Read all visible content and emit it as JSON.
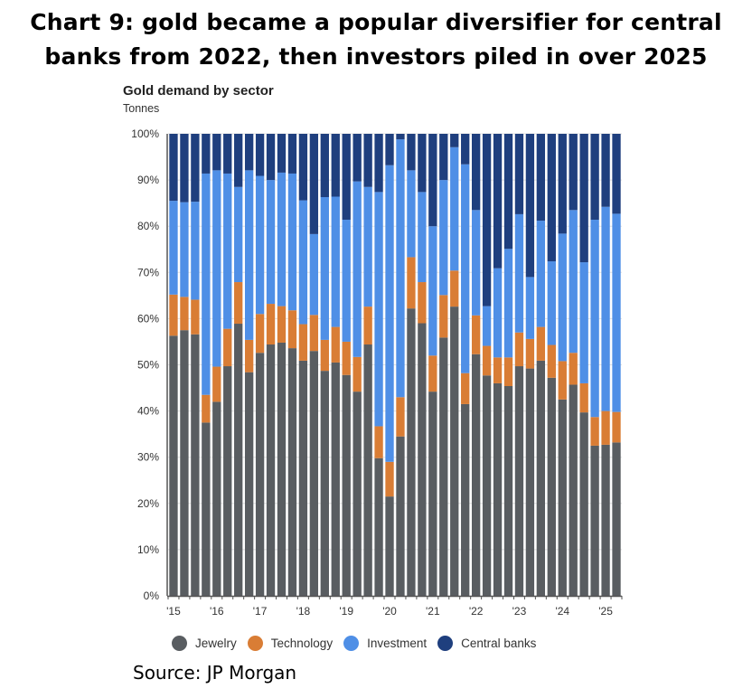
{
  "headline": {
    "line1": "Chart 9: gold became a popular diversifier for central",
    "line2": "banks from 2022, then investors piled in over 2025"
  },
  "source": "Source: JP Morgan",
  "chart_data": {
    "type": "bar",
    "stacked": true,
    "title": "Gold demand by sector",
    "ylabel": "Tonnes",
    "xlabel": "",
    "ylim": [
      0,
      100
    ],
    "y_ticks": [
      "0%",
      "10%",
      "20%",
      "30%",
      "40%",
      "50%",
      "60%",
      "70%",
      "80%",
      "90%",
      "100%"
    ],
    "x_tick_labels": [
      "'15",
      "'16",
      "'17",
      "'18",
      "'19",
      "'20",
      "'21",
      "'22",
      "'23",
      "'24",
      "'25"
    ],
    "legend_position": "bottom",
    "categories": [
      "Q1'15",
      "Q2'15",
      "Q3'15",
      "Q4'15",
      "Q1'16",
      "Q2'16",
      "Q3'16",
      "Q4'16",
      "Q1'17",
      "Q2'17",
      "Q3'17",
      "Q4'17",
      "Q1'18",
      "Q2'18",
      "Q3'18",
      "Q4'18",
      "Q1'19",
      "Q2'19",
      "Q3'19",
      "Q4'19",
      "Q1'20",
      "Q2'20",
      "Q3'20",
      "Q4'20",
      "Q1'21",
      "Q2'21",
      "Q3'21",
      "Q4'21",
      "Q1'22",
      "Q2'22",
      "Q3'22",
      "Q4'22",
      "Q1'23",
      "Q2'23",
      "Q3'23",
      "Q4'23",
      "Q1'24",
      "Q2'24",
      "Q3'24",
      "Q4'24",
      "Q1'25",
      "Q2'25"
    ],
    "series": [
      {
        "name": "Jewelry",
        "color": "#595d61",
        "values": [
          56.3,
          57.5,
          56.6,
          37.5,
          42.0,
          49.7,
          58.9,
          48.4,
          52.6,
          54.4,
          54.8,
          53.6,
          50.9,
          53.0,
          48.7,
          50.5,
          47.8,
          44.2,
          54.4,
          29.8,
          21.5,
          34.5,
          62.2,
          59.0,
          44.2,
          55.9,
          62.6,
          41.5,
          52.3,
          47.7,
          46.0,
          45.4,
          49.7,
          49.2,
          50.9,
          47.2,
          42.5,
          45.7,
          39.7,
          32.5,
          32.7,
          33.2
        ]
      },
      {
        "name": "Technology",
        "color": "#d97d35",
        "values": [
          8.9,
          7.2,
          7.5,
          6.0,
          7.6,
          8.1,
          9.0,
          7.0,
          8.4,
          8.8,
          7.9,
          8.2,
          7.9,
          7.8,
          6.7,
          7.7,
          7.2,
          7.5,
          8.2,
          6.9,
          7.5,
          8.5,
          11.1,
          8.9,
          7.8,
          9.2,
          7.8,
          6.7,
          8.4,
          6.4,
          5.6,
          6.2,
          7.3,
          6.4,
          7.3,
          7.1,
          8.3,
          6.9,
          6.3,
          6.2,
          7.3,
          6.6
        ]
      },
      {
        "name": "Investment",
        "color": "#4f8fe6",
        "values": [
          20.3,
          20.5,
          21.2,
          47.9,
          42.5,
          33.6,
          20.6,
          36.7,
          29.9,
          26.8,
          28.9,
          29.6,
          26.8,
          17.5,
          30.9,
          28.2,
          26.4,
          38.0,
          25.9,
          50.7,
          64.2,
          55.8,
          18.8,
          19.5,
          28.0,
          24.9,
          26.7,
          45.2,
          22.8,
          8.6,
          19.3,
          23.5,
          25.6,
          13.4,
          23.0,
          18.1,
          27.6,
          30.9,
          26.2,
          42.7,
          44.2,
          42.9
        ]
      },
      {
        "name": "Central banks",
        "color": "#1f3f7e",
        "values": [
          14.5,
          14.8,
          14.7,
          8.6,
          7.9,
          8.6,
          11.5,
          7.9,
          9.1,
          10.0,
          8.4,
          8.6,
          14.4,
          21.7,
          13.7,
          13.6,
          18.6,
          10.3,
          11.5,
          12.6,
          6.8,
          1.2,
          7.9,
          12.6,
          20.0,
          10.0,
          2.9,
          6.6,
          16.5,
          37.3,
          29.1,
          24.9,
          17.4,
          31.0,
          18.8,
          27.6,
          21.6,
          16.5,
          27.8,
          18.6,
          15.8,
          17.3
        ]
      }
    ]
  }
}
